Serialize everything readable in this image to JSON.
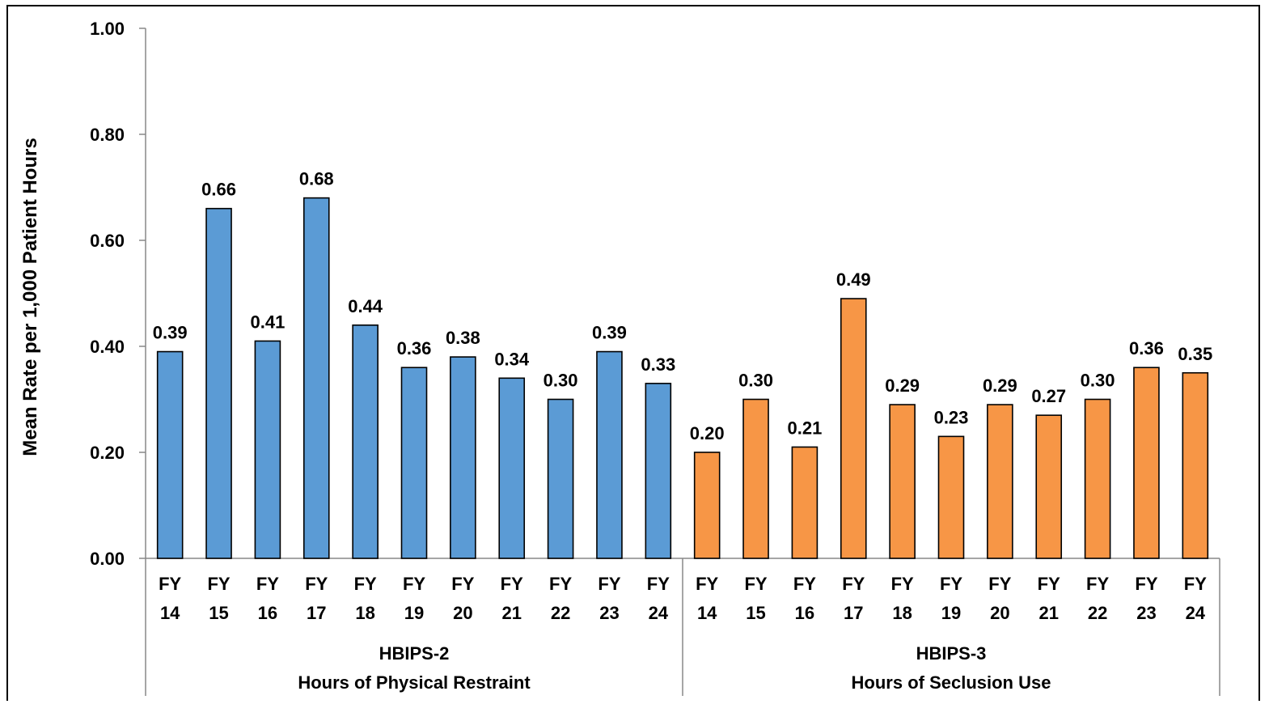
{
  "chart_data": {
    "type": "bar",
    "ylabel": "Mean Rate per 1,000 Patient Hours",
    "ylim": [
      0,
      1.0
    ],
    "yticks": [
      "0.00",
      "0.20",
      "0.40",
      "0.60",
      "0.80",
      "1.00"
    ],
    "grid": false,
    "legend": "none",
    "groups": [
      {
        "code": "HBIPS-2",
        "name": "Hours of Physical Restraint",
        "color": "#5b9bd5",
        "categories": [
          [
            "FY",
            "14"
          ],
          [
            "FY",
            "15"
          ],
          [
            "FY",
            "16"
          ],
          [
            "FY",
            "17"
          ],
          [
            "FY",
            "18"
          ],
          [
            "FY",
            "19"
          ],
          [
            "FY",
            "20"
          ],
          [
            "FY",
            "21"
          ],
          [
            "FY",
            "22"
          ],
          [
            "FY",
            "23"
          ],
          [
            "FY",
            "24"
          ]
        ],
        "values": [
          0.39,
          0.66,
          0.41,
          0.68,
          0.44,
          0.36,
          0.38,
          0.34,
          0.3,
          0.39,
          0.33
        ],
        "labels": [
          "0.39",
          "0.66",
          "0.41",
          "0.68",
          "0.44",
          "0.36",
          "0.38",
          "0.34",
          "0.30",
          "0.39",
          "0.33"
        ]
      },
      {
        "code": "HBIPS-3",
        "name": "Hours of Seclusion Use",
        "color": "#f79646",
        "categories": [
          [
            "FY",
            "14"
          ],
          [
            "FY",
            "15"
          ],
          [
            "FY",
            "16"
          ],
          [
            "FY",
            "17"
          ],
          [
            "FY",
            "18"
          ],
          [
            "FY",
            "19"
          ],
          [
            "FY",
            "20"
          ],
          [
            "FY",
            "21"
          ],
          [
            "FY",
            "22"
          ],
          [
            "FY",
            "23"
          ],
          [
            "FY",
            "24"
          ]
        ],
        "values": [
          0.2,
          0.3,
          0.21,
          0.49,
          0.29,
          0.23,
          0.29,
          0.27,
          0.3,
          0.36,
          0.35
        ],
        "labels": [
          "0.20",
          "0.30",
          "0.21",
          "0.49",
          "0.29",
          "0.23",
          "0.29",
          "0.27",
          "0.30",
          "0.36",
          "0.35"
        ]
      }
    ]
  }
}
